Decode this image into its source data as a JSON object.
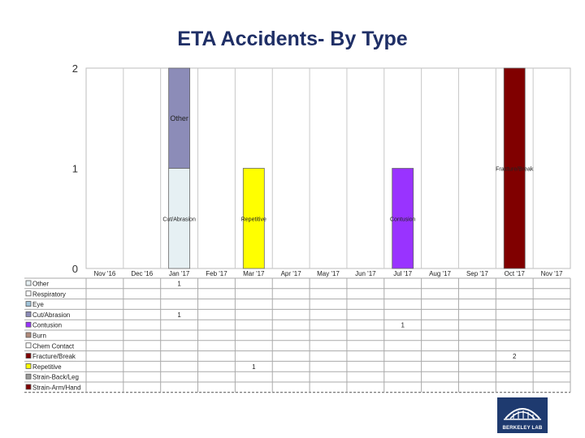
{
  "title": "ETA Accidents- By Type",
  "chart_data": {
    "type": "bar",
    "stacked": true,
    "categories": [
      "Nov '16",
      "Dec '16",
      "Jan '17",
      "Feb '17",
      "Mar '17",
      "Apr '17",
      "May '17",
      "Jun '17",
      "Jul '17",
      "Aug '17",
      "Sep '17",
      "Oct '17",
      "Nov '17"
    ],
    "ylim": [
      0,
      2
    ],
    "yticks": [
      0,
      1,
      2
    ],
    "grid": true,
    "legend_position": "left, in data table",
    "series": [
      {
        "name": "Other",
        "color": "#e6f0f3",
        "values": [
          0,
          0,
          1,
          0,
          0,
          0,
          0,
          0,
          0,
          0,
          0,
          0,
          0
        ]
      },
      {
        "name": "Respiratory",
        "color": "#ffffff",
        "values": [
          0,
          0,
          0,
          0,
          0,
          0,
          0,
          0,
          0,
          0,
          0,
          0,
          0
        ]
      },
      {
        "name": "Eye",
        "color": "#9fc3d9",
        "values": [
          0,
          0,
          0,
          0,
          0,
          0,
          0,
          0,
          0,
          0,
          0,
          0,
          0
        ]
      },
      {
        "name": "Cut/Abrasion",
        "color": "#8c8cb8",
        "values": [
          0,
          0,
          1,
          0,
          0,
          0,
          0,
          0,
          0,
          0,
          0,
          0,
          0
        ]
      },
      {
        "name": "Contusion",
        "color": "#9933ff",
        "values": [
          0,
          0,
          0,
          0,
          0,
          0,
          0,
          0,
          1,
          0,
          0,
          0,
          0
        ]
      },
      {
        "name": "Burn",
        "color": "#b08a7a",
        "values": [
          0,
          0,
          0,
          0,
          0,
          0,
          0,
          0,
          0,
          0,
          0,
          0,
          0
        ]
      },
      {
        "name": "Chem Contact",
        "color": "#ffffff",
        "values": [
          0,
          0,
          0,
          0,
          0,
          0,
          0,
          0,
          0,
          0,
          0,
          0,
          0
        ]
      },
      {
        "name": "Fracture/Break",
        "color": "#800000",
        "values": [
          0,
          0,
          0,
          0,
          0,
          0,
          0,
          0,
          0,
          0,
          0,
          2,
          0
        ]
      },
      {
        "name": "Repetitive",
        "color": "#ffff00",
        "values": [
          0,
          0,
          0,
          0,
          1,
          0,
          0,
          0,
          0,
          0,
          0,
          0,
          0
        ]
      },
      {
        "name": "Strain-Back/Leg",
        "color": "#9a9a9a",
        "values": [
          0,
          0,
          0,
          0,
          0,
          0,
          0,
          0,
          0,
          0,
          0,
          0,
          0
        ]
      },
      {
        "name": "Strain-Arm/Hand",
        "color": "#800000",
        "values": [
          0,
          0,
          0,
          0,
          0,
          0,
          0,
          0,
          0,
          0,
          0,
          0,
          0
        ]
      }
    ],
    "bar_labels": [
      {
        "text": "Other",
        "category": 2,
        "y": 1.5
      },
      {
        "text": "Cut/Abrasion",
        "category": 2,
        "y": 0.5
      },
      {
        "text": "Repetitive",
        "category": 4,
        "y": 0.5
      },
      {
        "text": "Contusion",
        "category": 8,
        "y": 0.5
      },
      {
        "text": "Fracture/Break",
        "category": 11,
        "y": 1
      }
    ]
  },
  "logo": {
    "text": "BERKELEY LAB"
  }
}
